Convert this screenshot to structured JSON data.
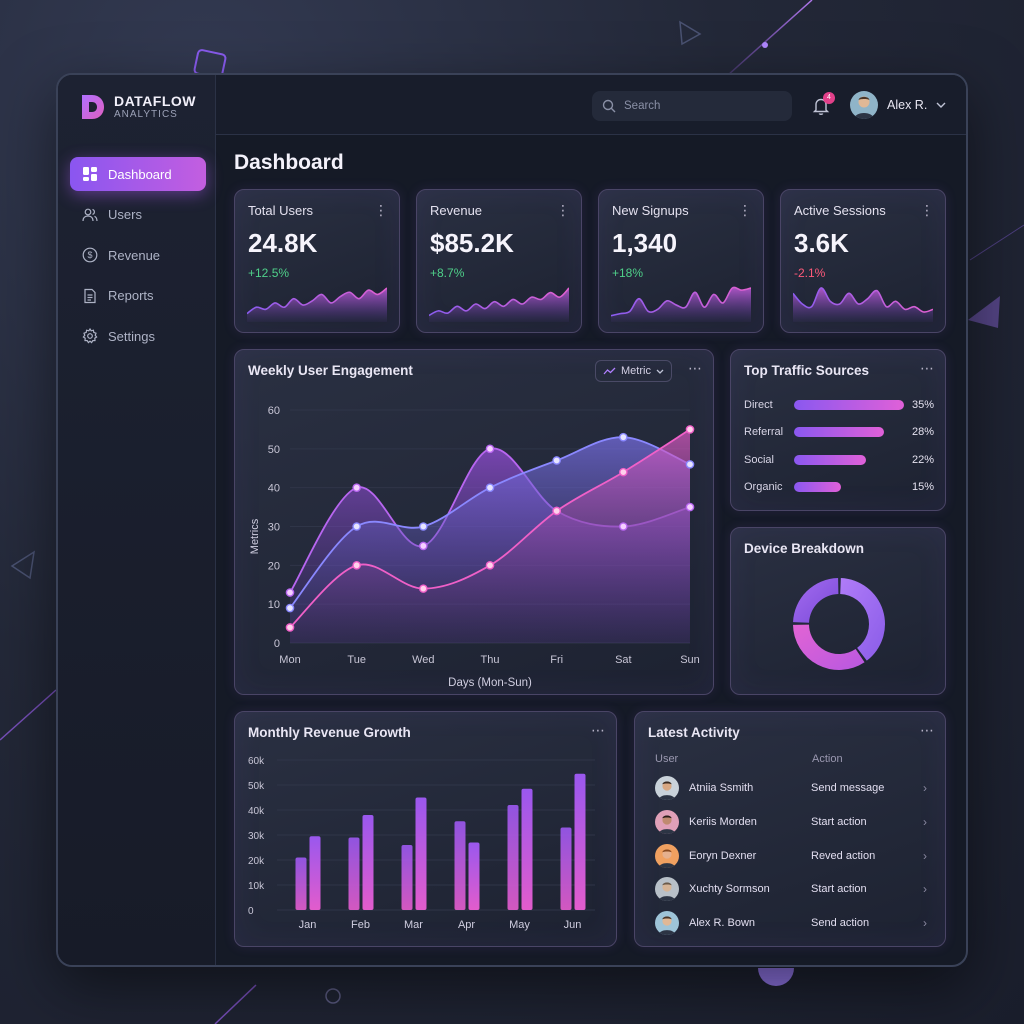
{
  "brand": {
    "name": "DATAFLOW",
    "subtitle": "ANALYTICS"
  },
  "sidebar": {
    "items": [
      {
        "label": "Dashboard",
        "icon": "dashboard-icon",
        "active": true
      },
      {
        "label": "Users",
        "icon": "users-icon",
        "active": false
      },
      {
        "label": "Revenue",
        "icon": "dollar-icon",
        "active": false
      },
      {
        "label": "Reports",
        "icon": "document-icon",
        "active": false
      },
      {
        "label": "Settings",
        "icon": "gear-icon",
        "active": false
      }
    ]
  },
  "topbar": {
    "search_placeholder": "Search",
    "notification_count": "4",
    "user_name": "Alex R."
  },
  "page_title": "Dashboard",
  "kpis": [
    {
      "title": "Total Users",
      "value": "24.8K",
      "delta": "+12.5%",
      "trend": "up",
      "spark": [
        3,
        6,
        5,
        8,
        6,
        10,
        7,
        9,
        12,
        8,
        11,
        13,
        10,
        14,
        12,
        15
      ]
    },
    {
      "title": "Revenue",
      "value": "$85.2K",
      "delta": "+8.7%",
      "trend": "up",
      "spark": [
        2,
        4,
        3,
        6,
        4,
        7,
        5,
        8,
        6,
        9,
        7,
        10,
        9,
        12,
        10,
        14
      ]
    },
    {
      "title": "New Signups",
      "value": "1,340",
      "delta": "+18%",
      "trend": "up",
      "spark": [
        2,
        3,
        4,
        10,
        4,
        5,
        9,
        7,
        6,
        13,
        6,
        12,
        8,
        15,
        14,
        15
      ]
    },
    {
      "title": "Active Sessions",
      "value": "3.6K",
      "delta": "-2.1%",
      "trend": "down",
      "spark": [
        10,
        6,
        5,
        12,
        7,
        6,
        10,
        6,
        8,
        11,
        5,
        7,
        4,
        5,
        3,
        4
      ]
    }
  ],
  "colors": {
    "accent_purple": "#8a56f0",
    "accent_pink": "#e05cc8",
    "positive": "#4fd08a",
    "negative": "#ff5a7a"
  },
  "engagement": {
    "title": "Weekly User Engagement",
    "dropdown": "Metric",
    "chart_data": {
      "type": "area",
      "title": "Weekly User Engagement",
      "xlabel": "Days (Mon-Sun)",
      "ylabel": "Metrics",
      "categories": [
        "Mon",
        "Tue",
        "Wed",
        "Thu",
        "Fri",
        "Sat",
        "Sun"
      ],
      "ylim": [
        0,
        60
      ],
      "yticks": [
        0,
        10,
        20,
        30,
        40,
        50,
        60
      ],
      "series": [
        {
          "values": [
            13,
            40,
            25,
            50,
            34,
            30,
            35
          ]
        },
        {
          "values": [
            9,
            30,
            30,
            40,
            47,
            53,
            46
          ]
        },
        {
          "values": [
            4,
            20,
            14,
            20,
            34,
            44,
            55
          ]
        }
      ]
    }
  },
  "traffic": {
    "title": "Top Traffic Sources",
    "rows": [
      {
        "label": "Direct",
        "pct": "35%",
        "value": 100
      },
      {
        "label": "Referral",
        "pct": "28%",
        "value": 82
      },
      {
        "label": "Social",
        "pct": "22%",
        "value": 65
      },
      {
        "label": "Organic",
        "pct": "15%",
        "value": 43
      }
    ]
  },
  "device": {
    "title": "Device Breakdown",
    "chart_data": {
      "type": "pie",
      "values": [
        40,
        35,
        25
      ]
    }
  },
  "revenue_growth": {
    "title": "Monthly Revenue Growth",
    "chart_data": {
      "type": "bar",
      "categories": [
        "Jan",
        "Feb",
        "Mar",
        "Apr",
        "May",
        "Jun"
      ],
      "ylim": [
        0,
        60000
      ],
      "yticks": [
        "0",
        "10k",
        "20k",
        "30k",
        "40k",
        "50k",
        "60k"
      ],
      "series": [
        {
          "values": [
            21000,
            29000,
            26000,
            35500,
            42000,
            33000
          ]
        },
        {
          "values": [
            29500,
            38000,
            45000,
            27000,
            48500,
            54500
          ]
        }
      ]
    }
  },
  "activity": {
    "title": "Latest Activity",
    "col_user": "User",
    "col_action": "Action",
    "rows": [
      {
        "user": "Atniia Ssmith",
        "action": "Send message"
      },
      {
        "user": "Keriis Morden",
        "action": "Start action"
      },
      {
        "user": "Eoryn Dexner",
        "action": "Reved action"
      },
      {
        "user": "Xuchty Sormson",
        "action": "Start action"
      },
      {
        "user": "Alex R. Bown",
        "action": "Send action"
      }
    ]
  }
}
